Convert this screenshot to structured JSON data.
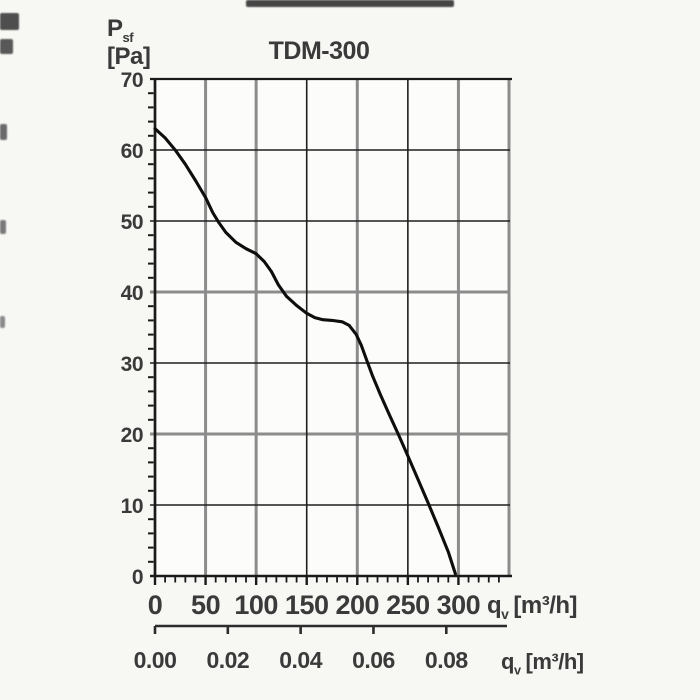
{
  "title": "TDM-300",
  "labels": {
    "pressure": {
      "symbol": "P",
      "subscript": "sf",
      "units": "[Pa]"
    },
    "flow_top": {
      "symbol": "q",
      "subscript": "v",
      "units": "[m³/h]"
    },
    "flow_bottom": {
      "symbol": "q",
      "subscript": "v",
      "units": "[m³/h]"
    }
  },
  "colors": {
    "background": "#f7f7f4",
    "text": "#3a3a3a",
    "grid_gray": "#8c8c8c",
    "grid_black": "#1f1f1f",
    "border_black": "#1a1a1a",
    "curve": "#0e0e0e"
  },
  "chart_data": {
    "type": "line",
    "title": "TDM-300",
    "xlabel": "qv [m³/h]",
    "ylabel": "Psf [Pa]",
    "x2label": "qv [m³/h]",
    "xlim": [
      0,
      350
    ],
    "ylim": [
      0,
      70
    ],
    "x_ticks": [
      0,
      50,
      100,
      150,
      200,
      250,
      300
    ],
    "y_ticks": [
      70,
      60,
      50,
      40,
      30,
      20,
      10,
      0
    ],
    "x2_ticks": [
      "0.00",
      "0.02",
      "0.04",
      "0.06",
      "0.08"
    ],
    "x2_to_x_factor": 3600,
    "x_minor_step": 10,
    "y_minor_step": 2,
    "grid": "on",
    "legend": "none",
    "gridline_styles": {
      "gray_x": [
        50,
        100,
        200,
        300,
        350
      ],
      "black_x": [
        150,
        250
      ],
      "gray_y": [
        20,
        40
      ],
      "black_y": [
        10,
        30,
        50,
        60
      ]
    },
    "series": [
      {
        "name": "TDM-300",
        "points": [
          [
            0,
            63
          ],
          [
            10,
            61.7
          ],
          [
            20,
            60
          ],
          [
            30,
            58
          ],
          [
            40,
            55.7
          ],
          [
            50,
            53.3
          ],
          [
            57,
            51.2
          ],
          [
            63,
            49.8
          ],
          [
            70,
            48.4
          ],
          [
            80,
            47
          ],
          [
            90,
            46.1
          ],
          [
            100,
            45.4
          ],
          [
            108,
            44.3
          ],
          [
            115,
            42.9
          ],
          [
            122,
            41
          ],
          [
            130,
            39.4
          ],
          [
            140,
            38.1
          ],
          [
            150,
            37
          ],
          [
            158,
            36.4
          ],
          [
            166,
            36.1
          ],
          [
            175,
            36
          ],
          [
            185,
            35.8
          ],
          [
            192,
            35.3
          ],
          [
            199,
            34
          ],
          [
            204,
            32.5
          ],
          [
            209,
            30.5
          ],
          [
            215,
            28.2
          ],
          [
            223,
            25.5
          ],
          [
            232,
            22.6
          ],
          [
            241,
            19.8
          ],
          [
            250,
            16.9
          ],
          [
            260,
            13.6
          ],
          [
            270,
            10.3
          ],
          [
            280,
            6.9
          ],
          [
            290,
            3.4
          ],
          [
            297,
            0.3
          ]
        ]
      }
    ]
  }
}
